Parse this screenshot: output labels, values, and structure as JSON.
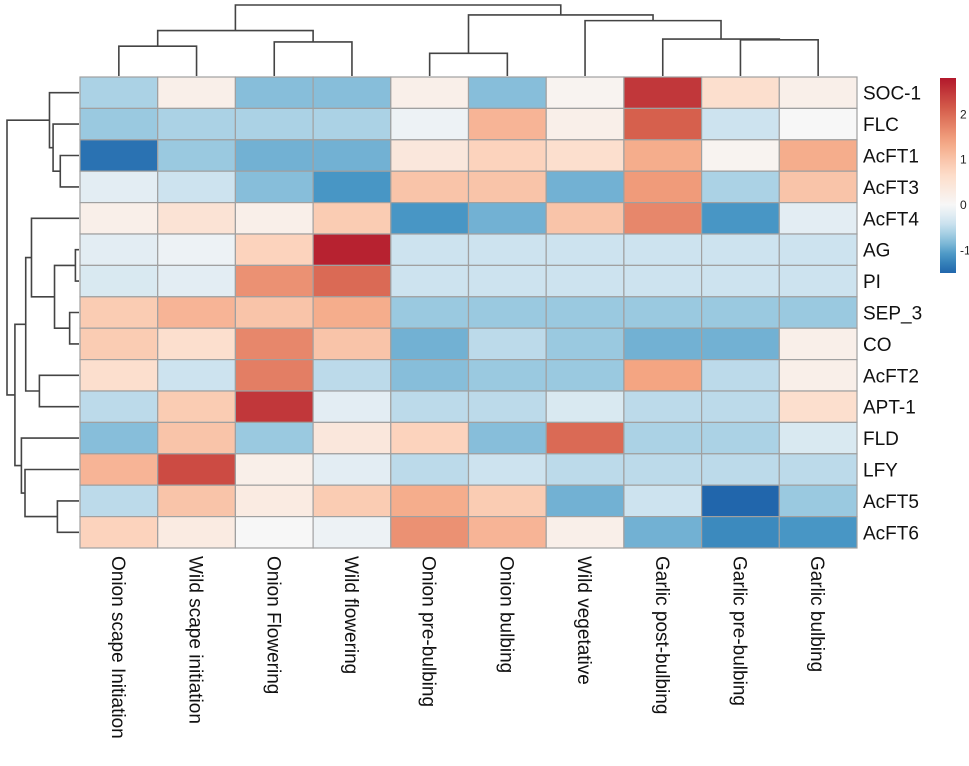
{
  "chart_data": {
    "type": "heatmap",
    "title": "",
    "xlabel": "",
    "ylabel": "",
    "columns": [
      "Onion scape Initiation",
      "Wild scape initiation",
      "Onion Flowering",
      "Wild flowering",
      "Onion pre-bulbing",
      "Onion bulbing",
      "Wild vegetative",
      "Garlic post-bulbing",
      "Garlic pre-bulbing",
      "Garlic bulbing"
    ],
    "rows": [
      "SOC-1",
      "FLC",
      "AcFT1",
      "AcFT3",
      "AcFT4",
      "AG",
      "PI",
      "SEP_3",
      "CO",
      "AcFT2",
      "APT-1",
      "FLD",
      "LFY",
      "AcFT5",
      "AcFT6"
    ],
    "values": [
      [
        -0.6,
        0.2,
        -0.8,
        -0.8,
        0.2,
        -0.8,
        0.1,
        2.5,
        0.6,
        0.2
      ],
      [
        -0.7,
        -0.6,
        -0.6,
        -0.6,
        -0.1,
        1.2,
        0.2,
        2.1,
        -0.4,
        0.0
      ],
      [
        -1.4,
        -0.7,
        -0.9,
        -0.9,
        0.4,
        0.8,
        0.6,
        1.3,
        0.1,
        1.3
      ],
      [
        -0.2,
        -0.4,
        -0.8,
        -1.1,
        1.0,
        1.0,
        -0.9,
        1.5,
        -0.6,
        1.0
      ],
      [
        0.2,
        0.5,
        0.2,
        0.9,
        -1.1,
        -0.9,
        1.0,
        1.7,
        -1.1,
        -0.2
      ],
      [
        -0.2,
        -0.1,
        0.8,
        2.7,
        -0.4,
        -0.4,
        -0.4,
        -0.4,
        -0.4,
        -0.4
      ],
      [
        -0.3,
        -0.2,
        1.6,
        2.0,
        -0.4,
        -0.4,
        -0.4,
        -0.4,
        -0.4,
        -0.4
      ],
      [
        0.9,
        1.2,
        1.0,
        1.3,
        -0.7,
        -0.7,
        -0.7,
        -0.7,
        -0.7,
        -0.7
      ],
      [
        0.9,
        0.6,
        1.7,
        1.0,
        -0.9,
        -0.5,
        -0.7,
        -0.9,
        -0.9,
        0.2
      ],
      [
        0.6,
        -0.4,
        1.8,
        -0.5,
        -0.8,
        -0.7,
        -0.7,
        1.4,
        -0.5,
        0.2
      ],
      [
        -0.5,
        0.9,
        2.5,
        -0.2,
        -0.5,
        -0.5,
        -0.3,
        -0.5,
        -0.5,
        0.6
      ],
      [
        -0.8,
        1.0,
        -0.7,
        0.4,
        0.8,
        -0.8,
        2.0,
        -0.6,
        -0.6,
        -0.3
      ],
      [
        1.2,
        2.3,
        0.2,
        -0.2,
        -0.5,
        -0.4,
        -0.5,
        -0.5,
        -0.5,
        -0.5
      ],
      [
        -0.5,
        1.0,
        0.3,
        0.9,
        1.3,
        0.9,
        -0.9,
        -0.4,
        -1.5,
        -0.7
      ],
      [
        0.8,
        0.3,
        0.0,
        -0.1,
        1.6,
        1.2,
        0.2,
        -0.9,
        -1.2,
        -1.1
      ]
    ],
    "color_scale": {
      "range": [
        -1.5,
        2.8
      ],
      "ticks": [
        -1,
        0,
        1,
        2
      ],
      "tick_labels": [
        "-1",
        "0",
        "1",
        "2"
      ],
      "colors": [
        "#2166ac",
        "#4393c3",
        "#92c5de",
        "#d1e5f0",
        "#f7f7f7",
        "#fddbc7",
        "#f4a582",
        "#d6604d",
        "#b2182b"
      ],
      "legend_position": "right"
    },
    "column_dendrogram": "((Onion scape Initiation, Wild scape initiation), (Onion Flowering, Wild flowering)), ((Onion pre-bulbing, Onion bulbing), (Wild vegetative, (Garlic post-bulbing, (Garlic pre-bulbing, Garlic bulbing))))",
    "row_dendrogram": "((SOC-1, (FLC, (AcFT1, AcFT3))), ((AcFT4, ((AG, PI), (SEP_3, CO))), (AcFT2, APT-1)), (FLD, (LFY, (AcFT5, AcFT6))))",
    "grid": false
  }
}
